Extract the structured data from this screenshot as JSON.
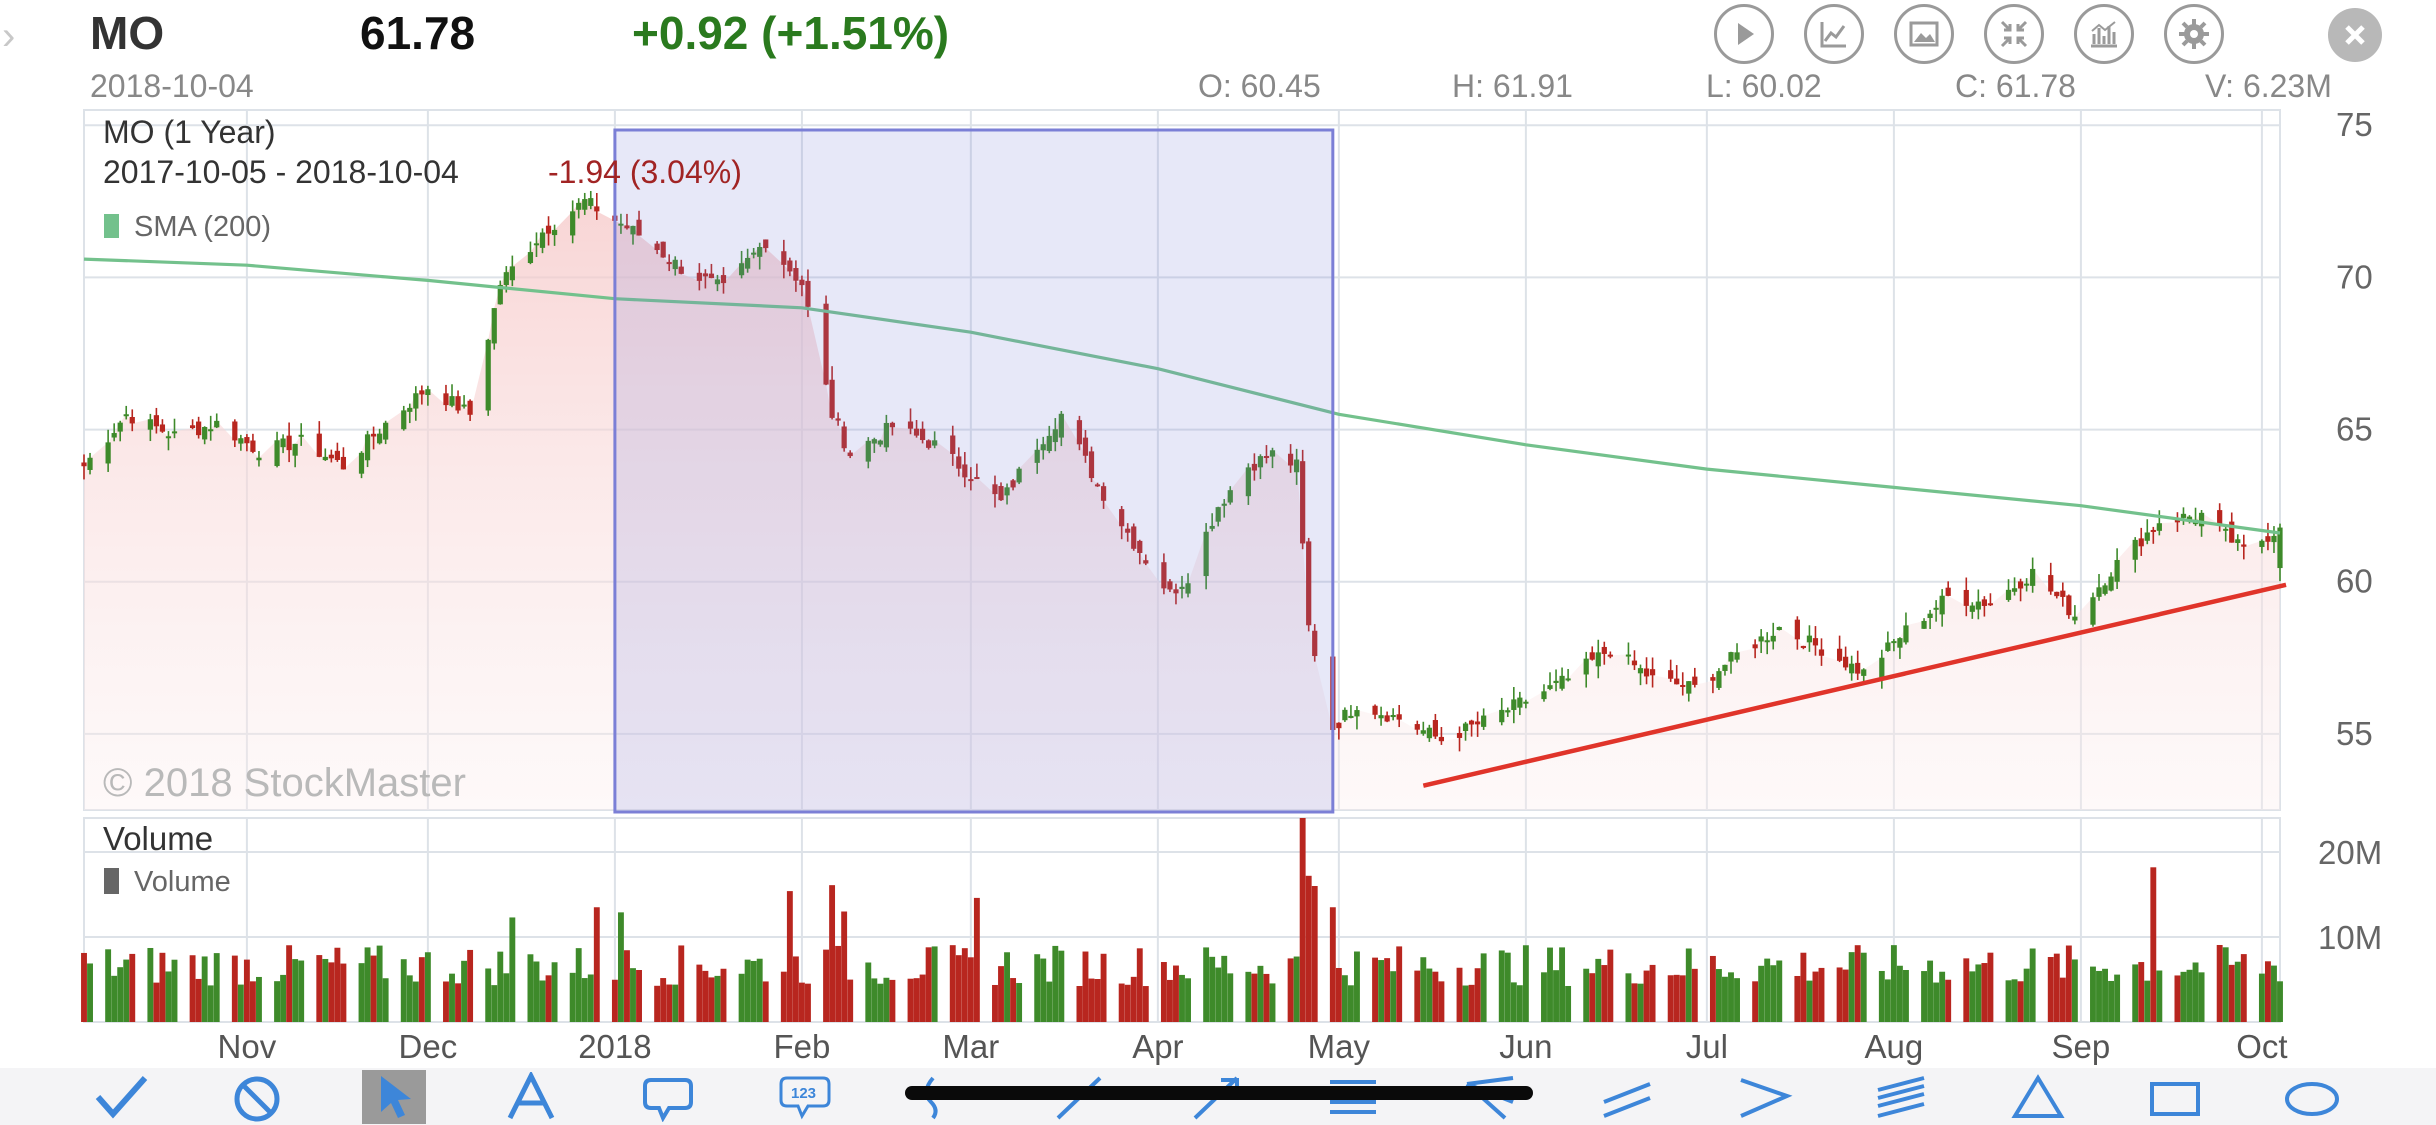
{
  "header": {
    "symbol": "MO",
    "price": "61.78",
    "change": "+0.92 (+1.51%)",
    "date": "2018-10-04",
    "open": "O: 60.45",
    "high": "H: 61.91",
    "low": "L: 60.02",
    "close": "C: 61.78",
    "volume": "V: 6.23M"
  },
  "toolbar_icons": [
    "play-icon",
    "line-chart-icon",
    "image-icon",
    "collapse-icon",
    "indicators-icon",
    "settings-icon",
    "close-icon"
  ],
  "drawing_tools": [
    "checkmark-icon",
    "no-entry-icon",
    "pointer-icon",
    "text-icon",
    "callout-icon",
    "number-label-icon",
    "freehand-icon",
    "line-icon",
    "arrow-icon",
    "horizontal-lines-icon",
    "fan-icon",
    "parallel-channel-icon",
    "wedge-icon",
    "fibonacci-icon",
    "triangle-icon",
    "rectangle-icon",
    "ellipse-icon"
  ],
  "colors": {
    "up": "#3e8a2a",
    "down": "#b8261f",
    "sma": "#73c18c",
    "selection": "#7b7fd6",
    "trendline": "#e0342a"
  },
  "chart_data": {
    "type": "candlestick",
    "title": "MO (1 Year)",
    "range": "2017-10-05 - 2018-10-04",
    "range_change": "-1.94 (3.04%)",
    "watermark": "© 2018 StockMaster",
    "legend": [
      {
        "name": "SMA (200)",
        "color": "#73c18c"
      }
    ],
    "ylim": [
      52.5,
      75.5
    ],
    "y_ticks": [
      75,
      70,
      65,
      60,
      55
    ],
    "x_ticks": [
      {
        "label": "Nov",
        "date": "2017-11-01"
      },
      {
        "label": "Dec",
        "date": "2017-12-01"
      },
      {
        "label": "2018",
        "date": "2018-01-01"
      },
      {
        "label": "Feb",
        "date": "2018-02-01"
      },
      {
        "label": "Mar",
        "date": "2018-03-01"
      },
      {
        "label": "Apr",
        "date": "2018-04-01"
      },
      {
        "label": "May",
        "date": "2018-05-01"
      },
      {
        "label": "Jun",
        "date": "2018-06-01"
      },
      {
        "label": "Jul",
        "date": "2018-07-01"
      },
      {
        "label": "Aug",
        "date": "2018-08-01"
      },
      {
        "label": "Sep",
        "date": "2018-09-01"
      },
      {
        "label": "Oct",
        "date": "2018-10-01"
      }
    ],
    "close_anchors": [
      [
        "2017-10-05",
        63.8
      ],
      [
        "2017-10-12",
        65.5
      ],
      [
        "2017-10-20",
        64.8
      ],
      [
        "2017-10-27",
        65.2
      ],
      [
        "2017-11-03",
        64.3
      ],
      [
        "2017-11-10",
        64.6
      ],
      [
        "2017-11-17",
        63.8
      ],
      [
        "2017-11-24",
        65.2
      ],
      [
        "2017-12-01",
        66.4
      ],
      [
        "2017-12-08",
        65.5
      ],
      [
        "2017-12-13",
        69.8
      ],
      [
        "2017-12-20",
        71.5
      ],
      [
        "2017-12-27",
        72.5
      ],
      [
        "2018-01-05",
        71.4
      ],
      [
        "2018-01-12",
        70.3
      ],
      [
        "2018-01-19",
        69.6
      ],
      [
        "2018-01-26",
        71.2
      ],
      [
        "2018-02-01",
        69.8
      ],
      [
        "2018-02-06",
        65.5
      ],
      [
        "2018-02-09",
        64.2
      ],
      [
        "2018-02-16",
        65.1
      ],
      [
        "2018-02-23",
        64.5
      ],
      [
        "2018-03-01",
        63.5
      ],
      [
        "2018-03-06",
        62.6
      ],
      [
        "2018-03-12",
        64.5
      ],
      [
        "2018-03-16",
        65.5
      ],
      [
        "2018-03-22",
        63.2
      ],
      [
        "2018-03-28",
        61.3
      ],
      [
        "2018-04-03",
        59.6
      ],
      [
        "2018-04-06",
        60.2
      ],
      [
        "2018-04-11",
        62.5
      ],
      [
        "2018-04-16",
        63.8
      ],
      [
        "2018-04-20",
        64.2
      ],
      [
        "2018-04-24",
        63.8
      ],
      [
        "2018-04-26",
        58.5
      ],
      [
        "2018-04-30",
        55.2
      ],
      [
        "2018-05-04",
        56.0
      ],
      [
        "2018-05-11",
        55.5
      ],
      [
        "2018-05-18",
        54.8
      ],
      [
        "2018-05-25",
        55.4
      ],
      [
        "2018-06-01",
        56.1
      ],
      [
        "2018-06-08",
        56.8
      ],
      [
        "2018-06-15",
        57.8
      ],
      [
        "2018-06-22",
        56.8
      ],
      [
        "2018-06-29",
        56.5
      ],
      [
        "2018-07-06",
        57.6
      ],
      [
        "2018-07-13",
        58.5
      ],
      [
        "2018-07-20",
        57.8
      ],
      [
        "2018-07-27",
        57.0
      ],
      [
        "2018-08-03",
        58.4
      ],
      [
        "2018-08-10",
        59.5
      ],
      [
        "2018-08-17",
        59.3
      ],
      [
        "2018-08-24",
        60.3
      ],
      [
        "2018-08-31",
        58.9
      ],
      [
        "2018-09-07",
        60.6
      ],
      [
        "2018-09-14",
        62.0
      ],
      [
        "2018-09-21",
        62.2
      ],
      [
        "2018-09-28",
        61.0
      ],
      [
        "2018-10-04",
        61.78
      ]
    ],
    "sma_200": [
      [
        "2017-10-05",
        70.6
      ],
      [
        "2017-11-01",
        70.4
      ],
      [
        "2017-12-01",
        69.9
      ],
      [
        "2018-01-01",
        69.3
      ],
      [
        "2018-02-01",
        69.0
      ],
      [
        "2018-03-01",
        68.2
      ],
      [
        "2018-04-01",
        67.0
      ],
      [
        "2018-05-01",
        65.5
      ],
      [
        "2018-06-01",
        64.5
      ],
      [
        "2018-07-01",
        63.7
      ],
      [
        "2018-08-01",
        63.1
      ],
      [
        "2018-09-01",
        62.5
      ],
      [
        "2018-10-04",
        61.6
      ]
    ],
    "volume": {
      "title": "Volume",
      "legend": "Volume",
      "y_ticks": [
        {
          "label": "20M",
          "value": 20
        },
        {
          "label": "10M",
          "value": 10
        }
      ],
      "ylim": [
        0,
        24
      ],
      "units": "M",
      "typical": 6.5,
      "spikes": [
        [
          "2017-12-15",
          12.3
        ],
        [
          "2017-12-29",
          13.5
        ],
        [
          "2018-01-02",
          12.9
        ],
        [
          "2018-01-30",
          15.4
        ],
        [
          "2018-02-06",
          16.1
        ],
        [
          "2018-02-08",
          13.0
        ],
        [
          "2018-03-02",
          14.6
        ],
        [
          "2018-04-25",
          24.0
        ],
        [
          "2018-04-26",
          17.2
        ],
        [
          "2018-04-27",
          16.0
        ],
        [
          "2018-04-30",
          13.5
        ],
        [
          "2018-09-13",
          18.2
        ]
      ]
    },
    "selection_range": [
      "2018-01-01",
      "2018-04-30"
    ],
    "trendline": [
      [
        "2018-05-15",
        53.3
      ],
      [
        "2018-10-05",
        59.9
      ]
    ]
  }
}
